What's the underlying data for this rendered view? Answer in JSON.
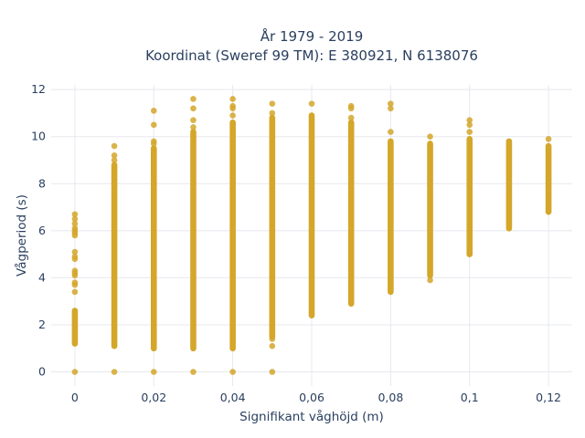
{
  "chart_data": {
    "type": "scatter",
    "title_lines": [
      "År 1979 - 2019",
      "Koordinat (Sweref 99 TM): E 380921, N 6138076"
    ],
    "xlabel": "Signifikant våghöjd (m)",
    "ylabel": "Vågperiod (s)",
    "xlim": [
      -0.006,
      0.126
    ],
    "ylim": [
      -0.6,
      12.2
    ],
    "x_ticks": [
      0,
      0.02,
      0.04,
      0.06,
      0.08,
      0.1,
      0.12
    ],
    "x_tick_labels": [
      "0",
      "0,02",
      "0,04",
      "0,06",
      "0,08",
      "0,1",
      "0,12"
    ],
    "y_ticks": [
      0,
      2,
      4,
      6,
      8,
      10,
      12
    ],
    "y_tick_labels": [
      "0",
      "2",
      "4",
      "6",
      "8",
      "10",
      "12"
    ],
    "grid": true,
    "marker_color": "#d4a62a",
    "columns": [
      {
        "x": 0,
        "ranges": [
          [
            1.2,
            2.6
          ]
        ],
        "points": [
          0,
          3.4,
          3.7,
          3.8,
          4.1,
          4.2,
          4.3,
          4.8,
          4.9,
          5.1,
          5.8,
          5.9,
          6.0,
          6.1,
          6.3,
          6.5,
          6.7
        ]
      },
      {
        "x": 0.01,
        "ranges": [
          [
            1.1,
            8.8
          ]
        ],
        "points": [
          0,
          9.0,
          9.2,
          9.6
        ]
      },
      {
        "x": 0.02,
        "ranges": [
          [
            1.0,
            9.5
          ]
        ],
        "points": [
          0,
          9.7,
          9.8,
          10.5,
          11.1
        ]
      },
      {
        "x": 0.03,
        "ranges": [
          [
            1.0,
            10.2
          ]
        ],
        "points": [
          0,
          10.4,
          10.7,
          11.2,
          11.6
        ]
      },
      {
        "x": 0.04,
        "ranges": [
          [
            1.0,
            10.6
          ]
        ],
        "points": [
          0,
          10.9,
          11.2,
          11.3,
          11.6
        ]
      },
      {
        "x": 0.05,
        "ranges": [
          [
            1.5,
            10.8
          ]
        ],
        "points": [
          0,
          1.1,
          1.4,
          11.0,
          11.4
        ]
      },
      {
        "x": 0.06,
        "ranges": [
          [
            2.4,
            10.9
          ]
        ],
        "points": [
          11.4
        ]
      },
      {
        "x": 0.07,
        "ranges": [
          [
            2.9,
            10.6
          ]
        ],
        "points": [
          10.8,
          11.2,
          11.3
        ]
      },
      {
        "x": 0.08,
        "ranges": [
          [
            3.4,
            9.8
          ]
        ],
        "points": [
          10.2,
          11.2,
          11.4
        ]
      },
      {
        "x": 0.09,
        "ranges": [
          [
            4.1,
            9.7
          ]
        ],
        "points": [
          3.9,
          10.0
        ]
      },
      {
        "x": 0.1,
        "ranges": [
          [
            5.0,
            9.9
          ]
        ],
        "points": [
          10.2,
          10.5,
          10.7
        ]
      },
      {
        "x": 0.11,
        "ranges": [
          [
            6.1,
            9.8
          ]
        ],
        "points": []
      },
      {
        "x": 0.12,
        "ranges": [
          [
            6.8,
            9.6
          ]
        ],
        "points": [
          9.9
        ]
      }
    ]
  }
}
